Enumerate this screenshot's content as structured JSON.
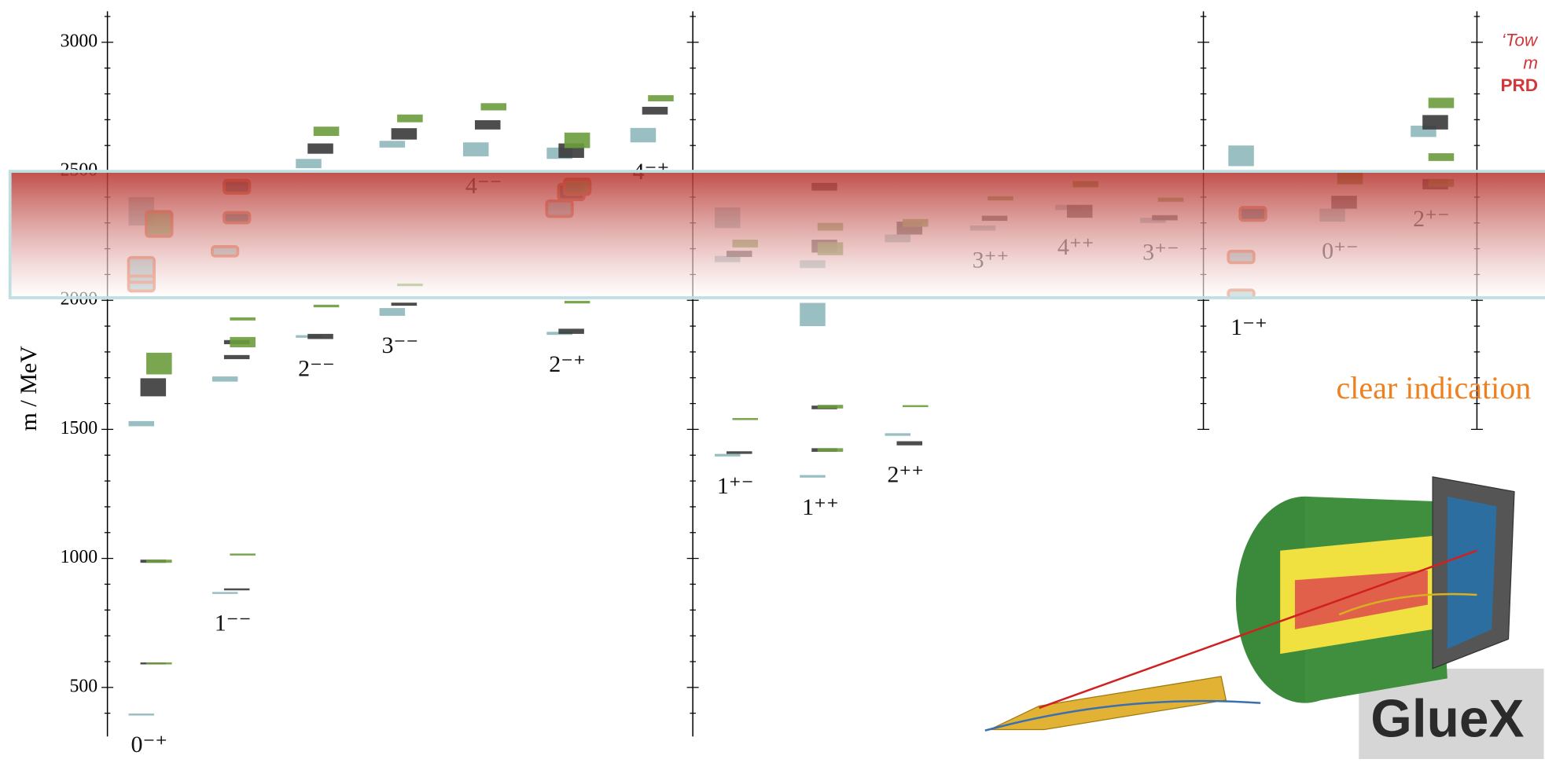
{
  "chart_data": {
    "type": "spectrum",
    "ylabel": "m / MeV",
    "ylim": [
      310,
      3120
    ],
    "yticks": [
      500,
      1000,
      1500,
      2000,
      2500,
      3000
    ],
    "minor_yticks": [
      400,
      600,
      700,
      800,
      900,
      1100,
      1200,
      1300,
      1400,
      1600,
      1700,
      1800,
      1900,
      2100,
      2200,
      2300,
      2400,
      2600,
      2700,
      2800,
      2900,
      3100
    ],
    "highlight": [
      2010,
      2500
    ],
    "series_colors": [
      "#8fb8bb",
      "#3a3a3a",
      "#6a9c3c"
    ],
    "outline_color": "#e0653a",
    "panels": [
      {
        "ylim": [
          310,
          3120
        ],
        "columns": [
          {
            "label": "0⁻⁺",
            "series": [
              [
                {
                  "v": 1522,
                  "e": 10
                },
                {
                  "v": 2101,
                  "e": 65,
                  "o": true
                },
                {
                  "v": 2082,
                  "e": 12,
                  "o": true
                },
                {
                  "v": 2345,
                  "e": 55
                },
                {
                  "v": 395,
                  "e": 3
                }
              ],
              [
                {
                  "v": 1663,
                  "e": 35
                },
                {
                  "v": 989,
                  "e": 6
                },
                {
                  "v": 593,
                  "e": 2
                }
              ],
              [
                {
                  "v": 1755,
                  "e": 42
                },
                {
                  "v": 2296,
                  "e": 48,
                  "o": true
                },
                {
                  "v": 989,
                  "e": 6
                },
                {
                  "v": 593,
                  "e": 2
                }
              ]
            ]
          },
          {
            "label": "1⁻⁻",
            "series": [
              [
                {
                  "v": 1695,
                  "e": 10
                },
                {
                  "v": 866,
                  "e": 3
                },
                {
                  "v": 2190,
                  "e": 18,
                  "o": true
                }
              ],
              [
                {
                  "v": 1780,
                  "e": 8
                },
                {
                  "v": 1838,
                  "e": 8
                },
                {
                  "v": 2320,
                  "e": 20,
                  "o": true
                },
                {
                  "v": 2440,
                  "e": 25,
                  "o": true
                },
                {
                  "v": 880,
                  "e": 3
                }
              ],
              [
                {
                  "v": 1838,
                  "e": 20
                },
                {
                  "v": 1928,
                  "e": 6
                },
                {
                  "v": 1015,
                  "e": 2
                }
              ]
            ]
          },
          {
            "label": "2⁻⁻",
            "series": [
              [
                {
                  "v": 2530,
                  "e": 18
                },
                {
                  "v": 1860,
                  "e": 5
                }
              ],
              [
                {
                  "v": 2588,
                  "e": 20
                },
                {
                  "v": 1860,
                  "e": 10
                }
              ],
              [
                {
                  "v": 2655,
                  "e": 18
                },
                {
                  "v": 1978,
                  "e": 5
                }
              ]
            ]
          },
          {
            "label": "3⁻⁻",
            "series": [
              [
                {
                  "v": 2605,
                  "e": 13
                },
                {
                  "v": 1955,
                  "e": 15
                }
              ],
              [
                {
                  "v": 2645,
                  "e": 22
                },
                {
                  "v": 1985,
                  "e": 6
                }
              ],
              [
                {
                  "v": 2705,
                  "e": 15
                },
                {
                  "v": 2060,
                  "e": 5
                }
              ]
            ]
          },
          {
            "label": "4⁻⁻",
            "series": [
              [
                {
                  "v": 2585,
                  "e": 27
                }
              ],
              [
                {
                  "v": 2680,
                  "e": 18
                }
              ],
              [
                {
                  "v": 2750,
                  "e": 14
                }
              ]
            ]
          },
          {
            "label": "2⁻⁺",
            "series": [
              [
                {
                  "v": 2570,
                  "e": 22
                },
                {
                  "v": 1872,
                  "e": 6
                },
                {
                  "v": 2355,
                  "e": 30,
                  "o": true
                }
              ],
              [
                {
                  "v": 2580,
                  "e": 28
                },
                {
                  "v": 1880,
                  "e": 10
                },
                {
                  "v": 2420,
                  "e": 30,
                  "o": true
                }
              ],
              [
                {
                  "v": 2620,
                  "e": 30
                },
                {
                  "v": 1993,
                  "e": 5
                },
                {
                  "v": 2440,
                  "e": 30,
                  "o": true
                }
              ]
            ]
          },
          {
            "label": "4⁻⁺",
            "series": [
              [
                {
                  "v": 2640,
                  "e": 28
                }
              ],
              [
                {
                  "v": 2735,
                  "e": 15
                }
              ],
              [
                {
                  "v": 2783,
                  "e": 12
                }
              ]
            ]
          }
        ]
      },
      {
        "ylim": [
          310,
          3120
        ],
        "columns": [
          {
            "label": "1⁺⁻",
            "series": [
              [
                {
                  "v": 1400,
                  "e": 5
                },
                {
                  "v": 2320,
                  "e": 40
                },
                {
                  "v": 2160,
                  "e": 12
                }
              ],
              [
                {
                  "v": 1410,
                  "e": 5
                },
                {
                  "v": 2180,
                  "e": 12
                }
              ],
              [
                {
                  "v": 1540,
                  "e": 3
                },
                {
                  "v": 2220,
                  "e": 15
                }
              ]
            ]
          },
          {
            "label": "1⁺⁺",
            "series": [
              [
                {
                  "v": 1318,
                  "e": 5
                },
                {
                  "v": 1945,
                  "e": 45
                },
                {
                  "v": 2140,
                  "e": 15
                }
              ],
              [
                {
                  "v": 1420,
                  "e": 7
                },
                {
                  "v": 1585,
                  "e": 7
                },
                {
                  "v": 2210,
                  "e": 25
                },
                {
                  "v": 2440,
                  "e": 15
                }
              ],
              [
                {
                  "v": 1420,
                  "e": 7
                },
                {
                  "v": 1588,
                  "e": 7
                },
                {
                  "v": 2200,
                  "e": 25
                },
                {
                  "v": 2285,
                  "e": 15
                }
              ]
            ]
          },
          {
            "label": "2⁺⁺",
            "series": [
              [
                {
                  "v": 1480,
                  "e": 5
                },
                {
                  "v": 2240,
                  "e": 15
                }
              ],
              [
                {
                  "v": 1446,
                  "e": 8
                },
                {
                  "v": 2280,
                  "e": 25
                }
              ],
              [
                {
                  "v": 1590,
                  "e": 3
                },
                {
                  "v": 2300,
                  "e": 15
                }
              ]
            ]
          },
          {
            "label": "3⁺⁺",
            "series": [
              [
                {
                  "v": 2280,
                  "e": 10
                }
              ],
              [
                {
                  "v": 2318,
                  "e": 10
                }
              ],
              [
                {
                  "v": 2395,
                  "e": 8
                }
              ]
            ]
          },
          {
            "label": "4⁺⁺",
            "series": [
              [
                {
                  "v": 2360,
                  "e": 10
                }
              ],
              [
                {
                  "v": 2345,
                  "e": 25
                }
              ],
              [
                {
                  "v": 2450,
                  "e": 12
                }
              ]
            ]
          },
          {
            "label": "3⁺⁻",
            "series": [
              [
                {
                  "v": 2310,
                  "e": 10
                }
              ],
              [
                {
                  "v": 2320,
                  "e": 10
                }
              ],
              [
                {
                  "v": 2390,
                  "e": 8
                }
              ]
            ]
          }
        ]
      },
      {
        "ylim": [
          1500,
          3120
        ],
        "columns": [
          {
            "label": "1⁻⁺",
            "series": [
              [
                {
                  "v": 2560,
                  "e": 40
                },
                {
                  "v": 2168,
                  "e": 22,
                  "o": true
                },
                {
                  "v": 2025,
                  "e": 15,
                  "o": true
                }
              ],
              [
                {
                  "v": 2335,
                  "e": 25,
                  "o": true
                }
              ],
              []
            ]
          },
          {
            "label": "0⁺⁻",
            "series": [
              [
                {
                  "v": 2330,
                  "e": 25
                }
              ],
              [
                {
                  "v": 2380,
                  "e": 25
                }
              ],
              [
                {
                  "v": 2475,
                  "e": 25
                }
              ]
            ]
          },
          {
            "label": "2⁺⁻",
            "series": [
              [
                {
                  "v": 2655,
                  "e": 22
                }
              ],
              [
                {
                  "v": 2690,
                  "e": 28
                },
                {
                  "v": 2450,
                  "e": 20
                }
              ],
              [
                {
                  "v": 2765,
                  "e": 20
                },
                {
                  "v": 2555,
                  "e": 15
                },
                {
                  "v": 2455,
                  "e": 15
                }
              ]
            ]
          }
        ]
      },
      {
        "ylim": [
          1500,
          3120
        ],
        "columns": []
      }
    ]
  },
  "annotations": {
    "reference_1": "‘Tow",
    "reference_2": "m",
    "reference_3": "PRD",
    "note": "clear indication",
    "logo": "GlueX"
  }
}
